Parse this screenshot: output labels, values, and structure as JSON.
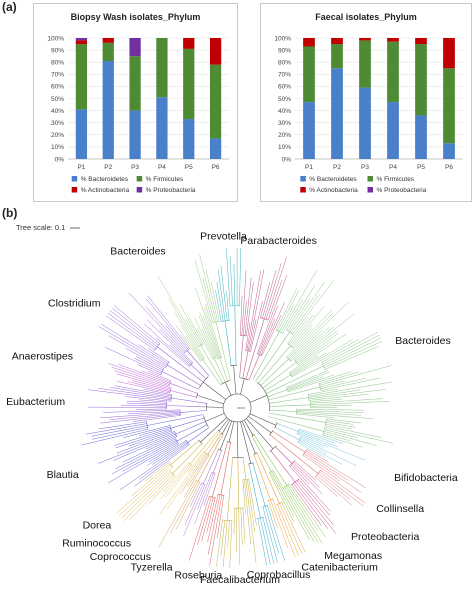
{
  "panel_a_label": "(a)",
  "panel_b_label": "(b)",
  "chart_data": [
    {
      "type": "bar",
      "stacked": true,
      "title": "Biopsy Wash isolates_Phylum",
      "categories": [
        "P1",
        "P2",
        "P3",
        "P4",
        "P5",
        "P6"
      ],
      "yticks": [
        "0%",
        "10%",
        "20%",
        "30%",
        "40%",
        "50%",
        "60%",
        "70%",
        "80%",
        "90%",
        "100%"
      ],
      "ylim": [
        0,
        100
      ],
      "legend_position": "bottom",
      "series": [
        {
          "name": "% Bacteroidetes",
          "color": "#4a7fc9",
          "values": [
            41,
            81,
            40,
            51,
            33,
            17
          ]
        },
        {
          "name": "% Firmicutes",
          "color": "#4f8a35",
          "values": [
            54,
            15,
            45,
            49,
            58,
            61
          ]
        },
        {
          "name": "% Actinobacteria",
          "color": "#c00000",
          "values": [
            3,
            4,
            0,
            0,
            9,
            22
          ]
        },
        {
          "name": "% Proteobacteria",
          "color": "#7030a0",
          "values": [
            2,
            0,
            15,
            0,
            0,
            0
          ]
        }
      ]
    },
    {
      "type": "bar",
      "stacked": true,
      "title": "Faecal isolates_Phylum",
      "categories": [
        "P1",
        "P2",
        "P3",
        "P4",
        "P5",
        "P6"
      ],
      "yticks": [
        "0%",
        "10%",
        "20%",
        "30%",
        "40%",
        "50%",
        "60%",
        "70%",
        "80%",
        "90%",
        "100%"
      ],
      "ylim": [
        0,
        100
      ],
      "legend_position": "bottom",
      "series": [
        {
          "name": "% Bacteroidetes",
          "color": "#4a7fc9",
          "values": [
            47,
            75,
            59,
            47,
            36,
            13
          ]
        },
        {
          "name": "% Firmicutes",
          "color": "#4f8a35",
          "values": [
            46,
            20,
            39,
            50,
            59,
            62
          ]
        },
        {
          "name": "% Actinobacteria",
          "color": "#c00000",
          "values": [
            7,
            5,
            2,
            3,
            5,
            25
          ]
        },
        {
          "name": "% Proteobacteria",
          "color": "#7030a0",
          "values": [
            0,
            0,
            0,
            0,
            0,
            0
          ]
        }
      ]
    }
  ],
  "tree": {
    "scale_label": "Tree scale: 0.1",
    "clades": [
      {
        "name": "Prevotella",
        "start": -101,
        "end": -88,
        "color": "#41b6c4"
      },
      {
        "name": "Parabacteroides",
        "start": -88,
        "end": -64,
        "color": "#c0608f"
      },
      {
        "name": "Bacteroides",
        "start": -64,
        "end": 18,
        "color": "#8fc68a"
      },
      {
        "name": "Bifidobacteria",
        "start": 18,
        "end": 30,
        "color": "#7fc6e0"
      },
      {
        "name": "Collinsella",
        "start": 30,
        "end": 42,
        "color": "#e07a7a"
      },
      {
        "name": "Proteobacteria",
        "start": 42,
        "end": 55,
        "color": "#c84c8a"
      },
      {
        "name": "Megamonas",
        "start": 55,
        "end": 64,
        "color": "#8bc34a"
      },
      {
        "name": "Catenibacterium",
        "start": 64,
        "end": 72,
        "color": "#e8a33d"
      },
      {
        "name": "Coprobacillus",
        "start": 72,
        "end": 80,
        "color": "#3fb0d0"
      },
      {
        "name": "Faecalibacterium",
        "start": 80,
        "end": 98,
        "color": "#c7b34a"
      },
      {
        "name": "Roseburia",
        "start": 98,
        "end": 108,
        "color": "#e06060"
      },
      {
        "name": "Tyzerella",
        "start": 108,
        "end": 116,
        "color": "#b07fd0"
      },
      {
        "name": "Coprococcus",
        "start": 116,
        "end": 124,
        "color": "#d4a05a"
      },
      {
        "name": "Ruminococcus",
        "start": 124,
        "end": 132,
        "color": "#e0c060"
      },
      {
        "name": "Dorea",
        "start": 132,
        "end": 142,
        "color": "#d9b44a"
      },
      {
        "name": "Blautia",
        "start": 142,
        "end": 172,
        "color": "#6a6ad8"
      },
      {
        "name": "Eubacterium",
        "start": 172,
        "end": 192,
        "color": "#9a6ad8"
      },
      {
        "name": "Anaerostipes",
        "start": 192,
        "end": 203,
        "color": "#c06ad8"
      },
      {
        "name": "Clostridium",
        "start": 203,
        "end": 232,
        "color": "#9a6ad8"
      },
      {
        "name": "Bacteroides",
        "start": 232,
        "end": 259,
        "color": "#a5cf8e"
      }
    ]
  }
}
